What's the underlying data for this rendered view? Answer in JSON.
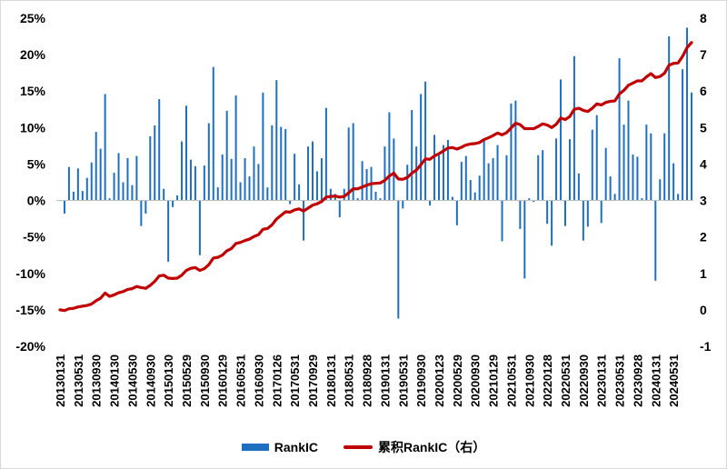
{
  "chart_data": {
    "type": "bar+line",
    "title": "",
    "xlabel": "",
    "ylabel": "",
    "y_left": {
      "min": -0.2,
      "max": 0.25,
      "step": 0.05,
      "tick_labels": [
        "25%",
        "20%",
        "15%",
        "10%",
        "5%",
        "0%",
        "-5%",
        "-10%",
        "-15%",
        "-20%"
      ]
    },
    "y_right": {
      "min": -1,
      "max": 8,
      "step": 1,
      "tick_labels": [
        "8",
        "7",
        "6",
        "5",
        "4",
        "3",
        "2",
        "1",
        "0",
        "-1"
      ]
    },
    "x_tick_labels": [
      "20130131",
      "20130531",
      "20130930",
      "20140130",
      "20140530",
      "20140930",
      "20150130",
      "20150529",
      "20150930",
      "20160129",
      "20160531",
      "20160930",
      "20170126",
      "20170531",
      "20170929",
      "20180131",
      "20180531",
      "20180928",
      "20190131",
      "20190531",
      "20190930",
      "20200123",
      "20200529",
      "20200930",
      "20210129",
      "20210531",
      "20210930",
      "20220128",
      "20220531",
      "20220930",
      "20230131",
      "20230531",
      "20230928",
      "20240131",
      "20240531"
    ],
    "tick_interval_months": 4,
    "series": [
      {
        "name": "RankIC",
        "type": "bar",
        "axis": "left",
        "color": "#1f6fc0",
        "values": [
          0.0,
          -0.018,
          0.046,
          0.012,
          0.044,
          0.013,
          0.031,
          0.052,
          0.094,
          0.071,
          0.146,
          0.003,
          0.038,
          0.065,
          0.025,
          0.058,
          0.021,
          0.061,
          -0.035,
          -0.018,
          0.088,
          0.103,
          0.139,
          0.016,
          -0.084,
          -0.009,
          0.007,
          0.081,
          0.13,
          0.056,
          0.047,
          -0.075,
          0.048,
          0.106,
          0.183,
          0.018,
          0.063,
          0.123,
          0.057,
          0.144,
          0.025,
          0.058,
          0.033,
          0.074,
          0.05,
          0.148,
          0.018,
          0.103,
          0.165,
          0.101,
          0.098,
          -0.005,
          0.064,
          0.022,
          -0.055,
          0.074,
          0.081,
          0.04,
          0.058,
          0.127,
          0.016,
          0.009,
          -0.023,
          0.016,
          0.1,
          0.106,
          0.003,
          0.054,
          0.043,
          0.046,
          0.012,
          0.003,
          0.074,
          0.121,
          0.085,
          -0.162,
          -0.011,
          0.049,
          0.124,
          0.074,
          0.146,
          0.163,
          -0.007,
          0.09,
          0.062,
          0.076,
          0.083,
          0.005,
          -0.034,
          0.053,
          0.061,
          0.028,
          0.011,
          0.034,
          0.082,
          0.051,
          0.058,
          0.076,
          -0.056,
          0.062,
          0.133,
          0.137,
          -0.039,
          -0.107,
          0.003,
          -0.002,
          0.062,
          0.069,
          -0.032,
          -0.062,
          0.085,
          0.166,
          -0.035,
          0.084,
          0.198,
          0.037,
          -0.055,
          -0.036,
          0.097,
          0.117,
          -0.031,
          0.072,
          0.033,
          0.009,
          0.195,
          0.104,
          0.137,
          0.063,
          0.06,
          0.003,
          0.104,
          0.092,
          -0.11,
          0.029,
          0.092,
          0.225,
          0.051,
          0.009,
          0.18,
          0.237,
          0.148
        ]
      },
      {
        "name": "累积RankIC（右）",
        "type": "line",
        "axis": "right",
        "color": "#c00000",
        "values": [
          0.0,
          -0.02,
          0.03,
          0.04,
          0.08,
          0.1,
          0.12,
          0.16,
          0.25,
          0.32,
          0.46,
          0.37,
          0.41,
          0.47,
          0.5,
          0.56,
          0.58,
          0.64,
          0.61,
          0.59,
          0.67,
          0.78,
          0.93,
          0.95,
          0.87,
          0.86,
          0.87,
          0.95,
          1.08,
          1.14,
          1.16,
          1.08,
          1.13,
          1.24,
          1.42,
          1.44,
          1.5,
          1.62,
          1.68,
          1.82,
          1.85,
          1.9,
          1.94,
          2.01,
          2.06,
          2.21,
          2.23,
          2.33,
          2.49,
          2.59,
          2.69,
          2.68,
          2.74,
          2.77,
          2.71,
          2.79,
          2.87,
          2.91,
          2.97,
          3.09,
          3.11,
          3.12,
          3.09,
          3.11,
          3.21,
          3.32,
          3.32,
          3.37,
          3.42,
          3.46,
          3.47,
          3.48,
          3.55,
          3.67,
          3.75,
          3.59,
          3.58,
          3.63,
          3.75,
          3.83,
          3.98,
          4.14,
          4.13,
          4.22,
          4.28,
          4.36,
          4.44,
          4.45,
          4.41,
          4.46,
          4.52,
          4.55,
          4.56,
          4.59,
          4.67,
          4.72,
          4.78,
          4.85,
          4.8,
          4.86,
          4.99,
          5.12,
          5.08,
          4.97,
          4.97,
          4.97,
          5.03,
          5.1,
          5.07,
          5.0,
          5.09,
          5.26,
          5.22,
          5.3,
          5.5,
          5.53,
          5.47,
          5.44,
          5.53,
          5.65,
          5.62,
          5.69,
          5.72,
          5.73,
          5.92,
          6.02,
          6.16,
          6.22,
          6.28,
          6.28,
          6.39,
          6.48,
          6.37,
          6.4,
          6.49,
          6.71,
          6.76,
          6.77,
          6.95,
          7.19,
          7.33
        ]
      }
    ]
  },
  "legend": [
    {
      "label": "RankIC",
      "color": "#1f6fc0",
      "kind": "bar"
    },
    {
      "label": "累积RankIC（右）",
      "color": "#c00000",
      "kind": "line"
    }
  ]
}
